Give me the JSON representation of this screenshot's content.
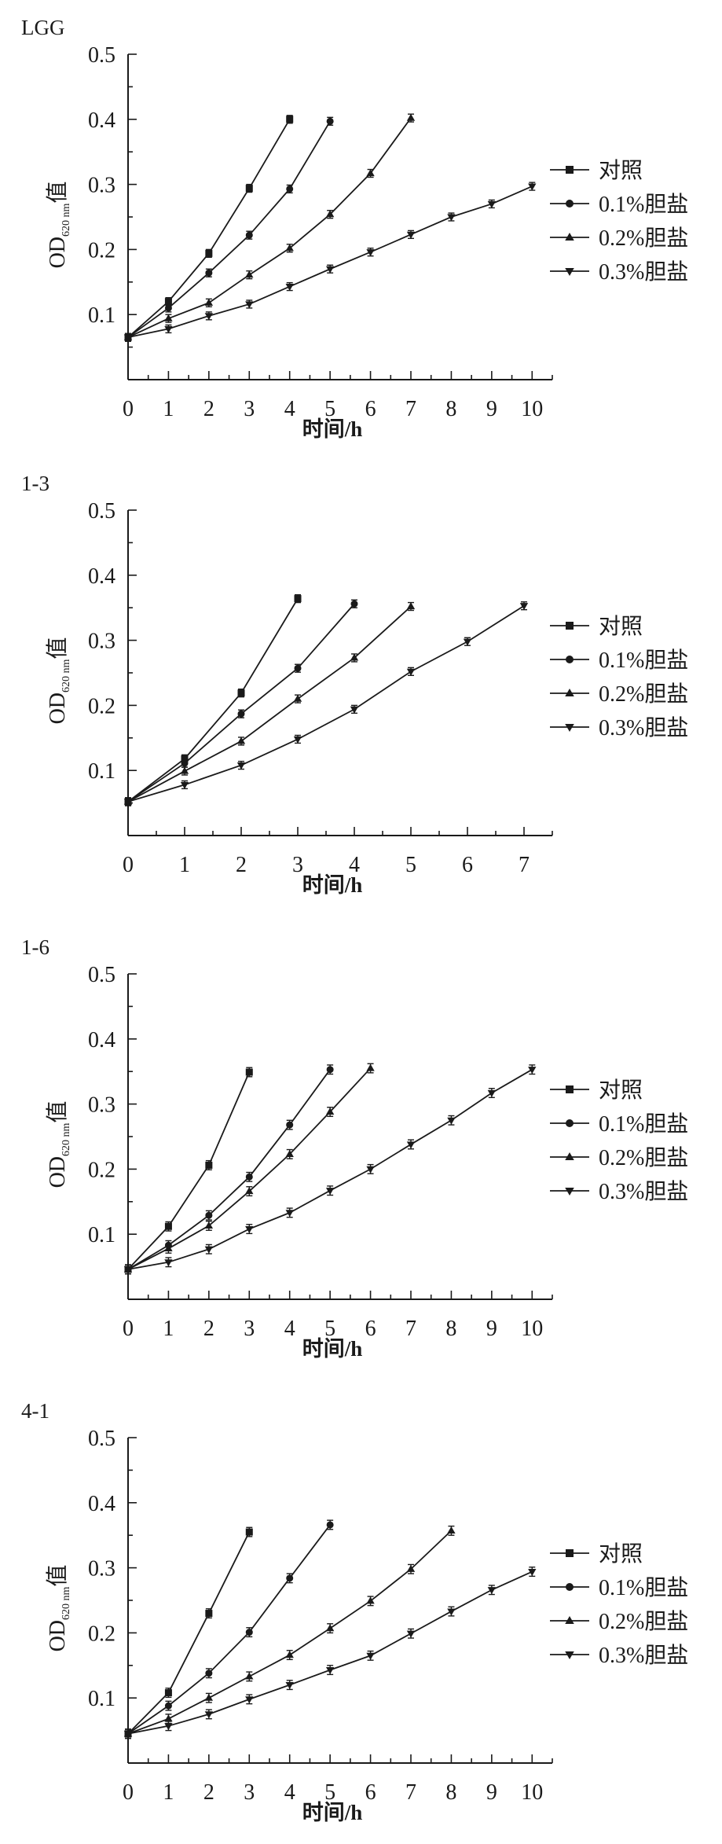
{
  "chart_data": [
    {
      "type": "line",
      "title": "LGG",
      "xlabel": "时间/h",
      "ylabel": {
        "main": "OD",
        "sub": "620 nm",
        "suffix": "值"
      },
      "xlim": [
        0,
        10.5
      ],
      "ylim": [
        0,
        0.5
      ],
      "x_ticks": [
        "0",
        "1",
        "2",
        "3",
        "4",
        "5",
        "6",
        "7",
        "8",
        "9",
        "10"
      ],
      "y_ticks": [
        "0.1",
        "0.2",
        "0.3",
        "0.4",
        "0.5"
      ],
      "grid": false,
      "legend": "right",
      "error_bar": 0.006,
      "series": [
        {
          "name": "对照",
          "marker": "square",
          "x": [
            0,
            1,
            2,
            3,
            4
          ],
          "values": [
            0.065,
            0.12,
            0.194,
            0.294,
            0.4
          ]
        },
        {
          "name": "0.1%胆盐",
          "marker": "circle",
          "x": [
            0,
            1,
            2,
            3,
            4,
            5
          ],
          "values": [
            0.065,
            0.11,
            0.164,
            0.222,
            0.293,
            0.397
          ]
        },
        {
          "name": "0.2%胆盐",
          "marker": "triangle-up",
          "x": [
            0,
            1,
            2,
            3,
            4,
            5,
            6,
            7
          ],
          "values": [
            0.065,
            0.094,
            0.118,
            0.161,
            0.202,
            0.254,
            0.317,
            0.402
          ]
        },
        {
          "name": "0.3%胆盐",
          "marker": "triangle-down",
          "x": [
            0,
            1,
            2,
            3,
            4,
            5,
            6,
            7,
            8,
            9,
            10
          ],
          "values": [
            0.065,
            0.078,
            0.098,
            0.116,
            0.143,
            0.17,
            0.196,
            0.223,
            0.25,
            0.27,
            0.297
          ]
        }
      ]
    },
    {
      "type": "line",
      "title": "1-3",
      "xlabel": "时间/h",
      "ylabel": {
        "main": "OD",
        "sub": "620 nm",
        "suffix": "值"
      },
      "xlim": [
        0,
        7.5
      ],
      "ylim": [
        0,
        0.5
      ],
      "x_ticks": [
        "0",
        "1",
        "2",
        "3",
        "4",
        "5",
        "6",
        "7"
      ],
      "y_ticks": [
        "0.1",
        "0.2",
        "0.3",
        "0.4",
        "0.5"
      ],
      "grid": false,
      "legend": "right",
      "error_bar": 0.006,
      "series": [
        {
          "name": "对照",
          "marker": "square",
          "x": [
            0,
            1,
            2,
            3
          ],
          "values": [
            0.052,
            0.118,
            0.219,
            0.364
          ]
        },
        {
          "name": "0.1%胆盐",
          "marker": "circle",
          "x": [
            0,
            1,
            2,
            3,
            4
          ],
          "values": [
            0.052,
            0.111,
            0.187,
            0.257,
            0.356
          ]
        },
        {
          "name": "0.2%胆盐",
          "marker": "triangle-up",
          "x": [
            0,
            1,
            2,
            3,
            4,
            5
          ],
          "values": [
            0.052,
            0.099,
            0.145,
            0.21,
            0.273,
            0.352
          ]
        },
        {
          "name": "0.3%胆盐",
          "marker": "triangle-down",
          "x": [
            0,
            1,
            2,
            3,
            4,
            5,
            6,
            7
          ],
          "values": [
            0.052,
            0.078,
            0.108,
            0.148,
            0.194,
            0.252,
            0.298,
            0.353
          ]
        }
      ]
    },
    {
      "type": "line",
      "title": "1-6",
      "xlabel": "时间/h",
      "ylabel": {
        "main": "OD",
        "sub": "620 nm",
        "suffix": "值"
      },
      "xlim": [
        0,
        10.5
      ],
      "ylim": [
        0,
        0.5
      ],
      "x_ticks": [
        "0",
        "1",
        "2",
        "3",
        "4",
        "5",
        "6",
        "7",
        "8",
        "9",
        "10"
      ],
      "y_ticks": [
        "0.1",
        "0.2",
        "0.3",
        "0.4",
        "0.5"
      ],
      "grid": false,
      "legend": "right",
      "error_bar": 0.007,
      "series": [
        {
          "name": "对照",
          "marker": "square",
          "x": [
            0,
            1,
            2,
            3
          ],
          "values": [
            0.046,
            0.112,
            0.206,
            0.349
          ]
        },
        {
          "name": "0.1%胆盐",
          "marker": "circle",
          "x": [
            0,
            1,
            2,
            3,
            4,
            5
          ],
          "values": [
            0.046,
            0.083,
            0.129,
            0.188,
            0.268,
            0.353
          ]
        },
        {
          "name": "0.2%胆盐",
          "marker": "triangle-up",
          "x": [
            0,
            1,
            2,
            3,
            4,
            5,
            6
          ],
          "values": [
            0.046,
            0.078,
            0.113,
            0.166,
            0.223,
            0.288,
            0.355
          ]
        },
        {
          "name": "0.3%胆盐",
          "marker": "triangle-down",
          "x": [
            0,
            1,
            2,
            3,
            4,
            5,
            6,
            7,
            8,
            9,
            10
          ],
          "values": [
            0.046,
            0.057,
            0.077,
            0.108,
            0.133,
            0.167,
            0.2,
            0.238,
            0.275,
            0.317,
            0.353
          ]
        }
      ]
    },
    {
      "type": "line",
      "title": "4-1",
      "xlabel": "时间/h",
      "ylabel": {
        "main": "OD",
        "sub": "620 nm",
        "suffix": "值"
      },
      "xlim": [
        0,
        10.5
      ],
      "ylim": [
        0,
        0.5
      ],
      "x_ticks": [
        "0",
        "1",
        "2",
        "3",
        "4",
        "5",
        "6",
        "7",
        "8",
        "9",
        "10"
      ],
      "y_ticks": [
        "0.1",
        "0.2",
        "0.3",
        "0.4",
        "0.5"
      ],
      "grid": false,
      "legend": "right",
      "error_bar": 0.007,
      "series": [
        {
          "name": "对照",
          "marker": "square",
          "x": [
            0,
            1,
            2,
            3
          ],
          "values": [
            0.045,
            0.108,
            0.23,
            0.355
          ]
        },
        {
          "name": "0.1%胆盐",
          "marker": "circle",
          "x": [
            0,
            1,
            2,
            3,
            4,
            5
          ],
          "values": [
            0.045,
            0.088,
            0.138,
            0.201,
            0.284,
            0.366
          ]
        },
        {
          "name": "0.2%胆盐",
          "marker": "triangle-up",
          "x": [
            0,
            1,
            2,
            3,
            4,
            5,
            6,
            7,
            8
          ],
          "values": [
            0.045,
            0.068,
            0.1,
            0.133,
            0.166,
            0.207,
            0.249,
            0.298,
            0.357
          ]
        },
        {
          "name": "0.3%胆盐",
          "marker": "triangle-down",
          "x": [
            0,
            1,
            2,
            3,
            4,
            5,
            6,
            7,
            8,
            9,
            10
          ],
          "values": [
            0.045,
            0.057,
            0.075,
            0.098,
            0.12,
            0.143,
            0.165,
            0.199,
            0.233,
            0.266,
            0.294
          ]
        }
      ]
    }
  ]
}
